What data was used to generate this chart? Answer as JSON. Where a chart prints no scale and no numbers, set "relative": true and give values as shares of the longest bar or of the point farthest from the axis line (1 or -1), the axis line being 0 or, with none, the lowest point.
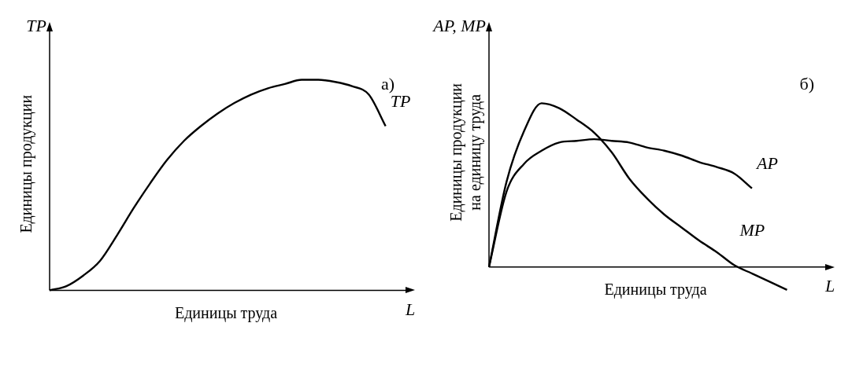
{
  "chart_data": [
    {
      "type": "line",
      "relative": true,
      "xlabel": "Единицы труда",
      "ylabel": "Единицы продукции",
      "annotations": [
        "TP",
        "L",
        "а)"
      ],
      "categories": [
        null,
        null,
        null,
        null,
        null,
        null,
        null,
        null,
        null,
        null,
        null,
        null,
        null,
        null,
        null,
        null,
        null,
        null,
        null,
        null,
        null,
        null
      ],
      "series": [
        {
          "name": "TP",
          "color": "#000000",
          "values": [
            0,
            0.02,
            0.07,
            0.14,
            0.26,
            0.39,
            0.51,
            0.62,
            0.71,
            0.78,
            0.84,
            0.89,
            0.93,
            0.96,
            0.98,
            1.0,
            1.0,
            0.99,
            0.97,
            0.93,
            0.78,
            null
          ]
        }
      ],
      "marker": "none",
      "line_style": "solid"
    },
    {
      "type": "line",
      "relative": true,
      "xlabel": "Единицы труда",
      "ylabel": "Единицы продукции\nна единицу труда",
      "annotations": [
        "AP, MP",
        "L",
        "б)"
      ],
      "categories": [
        null,
        null,
        null,
        null,
        null,
        null,
        null,
        null,
        null,
        null,
        null,
        null,
        null,
        null,
        null,
        null,
        null,
        null,
        null,
        null
      ],
      "series": [
        {
          "name": "AP",
          "color": "#000000",
          "values": [
            0,
            0.46,
            0.63,
            0.71,
            0.76,
            0.77,
            0.78,
            0.77,
            0.76,
            0.73,
            0.71,
            0.68,
            0.64,
            0.61,
            0.57,
            0.48,
            null,
            null,
            null,
            null
          ]
        },
        {
          "name": "MP",
          "color": "#000000",
          "values": [
            0,
            0.52,
            0.83,
            1.0,
            0.97,
            0.9,
            0.82,
            0.7,
            0.54,
            0.42,
            0.32,
            0.24,
            0.16,
            0.09,
            0.01,
            -0.04,
            -0.09,
            -0.14,
            null,
            null
          ]
        }
      ],
      "marker": "none",
      "line_style": "solid"
    }
  ]
}
